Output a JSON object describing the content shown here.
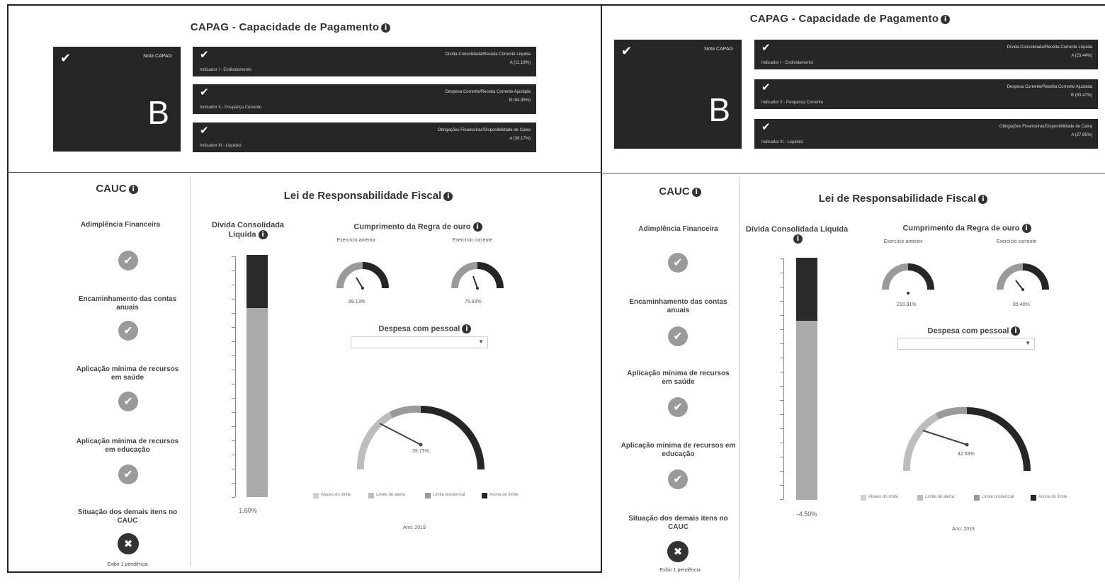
{
  "colors": {
    "dark": "#262626",
    "mid": "#9a9a9a",
    "light": "#bdbdbd",
    "frame": "#222222"
  },
  "left": {
    "capag": {
      "title": "CAPAG - Capacidade de Pagamento",
      "info_icon": "i",
      "nota_label": "Nota CAPAG",
      "grade": "B",
      "indicators": [
        {
          "name": "Indicador I - Endividamento",
          "desc": "Dívida Consolidada/Receita Corrente Líquida",
          "value": "A (11.19%)"
        },
        {
          "name": "Indicador II - Poupança Corrente",
          "desc": "Despesa Corrente/Receita Corrente Ajustada",
          "value": "B (94.35%)"
        },
        {
          "name": "Indicador III - Liquidez",
          "desc": "Obrigações Financeiras/Disponibilidade de Caixa",
          "value": "A (38.17%)"
        }
      ]
    },
    "cauc": {
      "title": "CAUC",
      "items": [
        "Adimplência Financeira",
        "Encaminhamento das contas anuais",
        "Aplicação mínima de recursos em saúde",
        "Aplicação mínima de recursos em educação",
        "Situação dos demais itens no CAUC"
      ],
      "footer": "Exibir 1 pendência"
    },
    "lrf": {
      "title": "Lei de Responsabilidade Fiscal",
      "divida_title": "Dívida Consolidada Líquida",
      "divida_pct": "1.60%",
      "divida_fill": 0.78,
      "regra_title": "Cumprimento da Regra de ouro",
      "ex_anterior": "Exercício anterior",
      "ex_corrente": "Exercício corrente",
      "gauge1_value": "89.13%",
      "gauge2_value": "75.93%",
      "despesa_title": "Despesa com pessoal",
      "big_gauge_value": "39.73%",
      "legend": [
        "Abaixo do limite",
        "Limite de alerta",
        "Limite prudencial",
        "Acima do limite"
      ],
      "ano": "Ano: 2019"
    }
  },
  "right": {
    "capag": {
      "title": "CAPAG - Capacidade de Pagamento",
      "info_icon": "i",
      "nota_label": "Nota CAPAG",
      "grade": "B",
      "indicators": [
        {
          "name": "Indicador I - Endividamento",
          "desc": "Dívida Consolidada/Receita Corrente Líquida",
          "value": "A (23.44%)"
        },
        {
          "name": "Indicador II - Poupança Corrente",
          "desc": "Despesa Corrente/Receita Corrente Ajustada",
          "value": "B (93.47%)"
        },
        {
          "name": "Indicador III - Liquidez",
          "desc": "Obrigações Financeiras/Disponibilidade de Caixa",
          "value": "A (27.95%)"
        }
      ]
    },
    "cauc": {
      "title": "CAUC",
      "items": [
        "Adimplência Financeira",
        "Encaminhamento das contas anuais",
        "Aplicação mínima de recursos em saúde",
        "Aplicação mínima de recursos em educação",
        "Situação dos demais itens no CAUC"
      ],
      "footer": "Exibir 1 pendência"
    },
    "lrf": {
      "title": "Lei de Responsabilidade Fiscal",
      "divida_title": "Dívida Consolidada Líquida",
      "divida_pct": "-4.50%",
      "divida_fill": 0.74,
      "regra_title": "Cumprimento da Regra de ouro",
      "ex_anterior": "Exercício anterior",
      "ex_corrente": "Exercício corrente",
      "gauge1_value": "210.91%",
      "gauge2_value": "85.40%",
      "despesa_title": "Despesa com pessoal",
      "big_gauge_value": "42.53%",
      "legend": [
        "Abaixo do limite",
        "Limite de alerta",
        "Limite prudencial",
        "Acima do limite"
      ],
      "ano": "Ano: 2019"
    }
  }
}
